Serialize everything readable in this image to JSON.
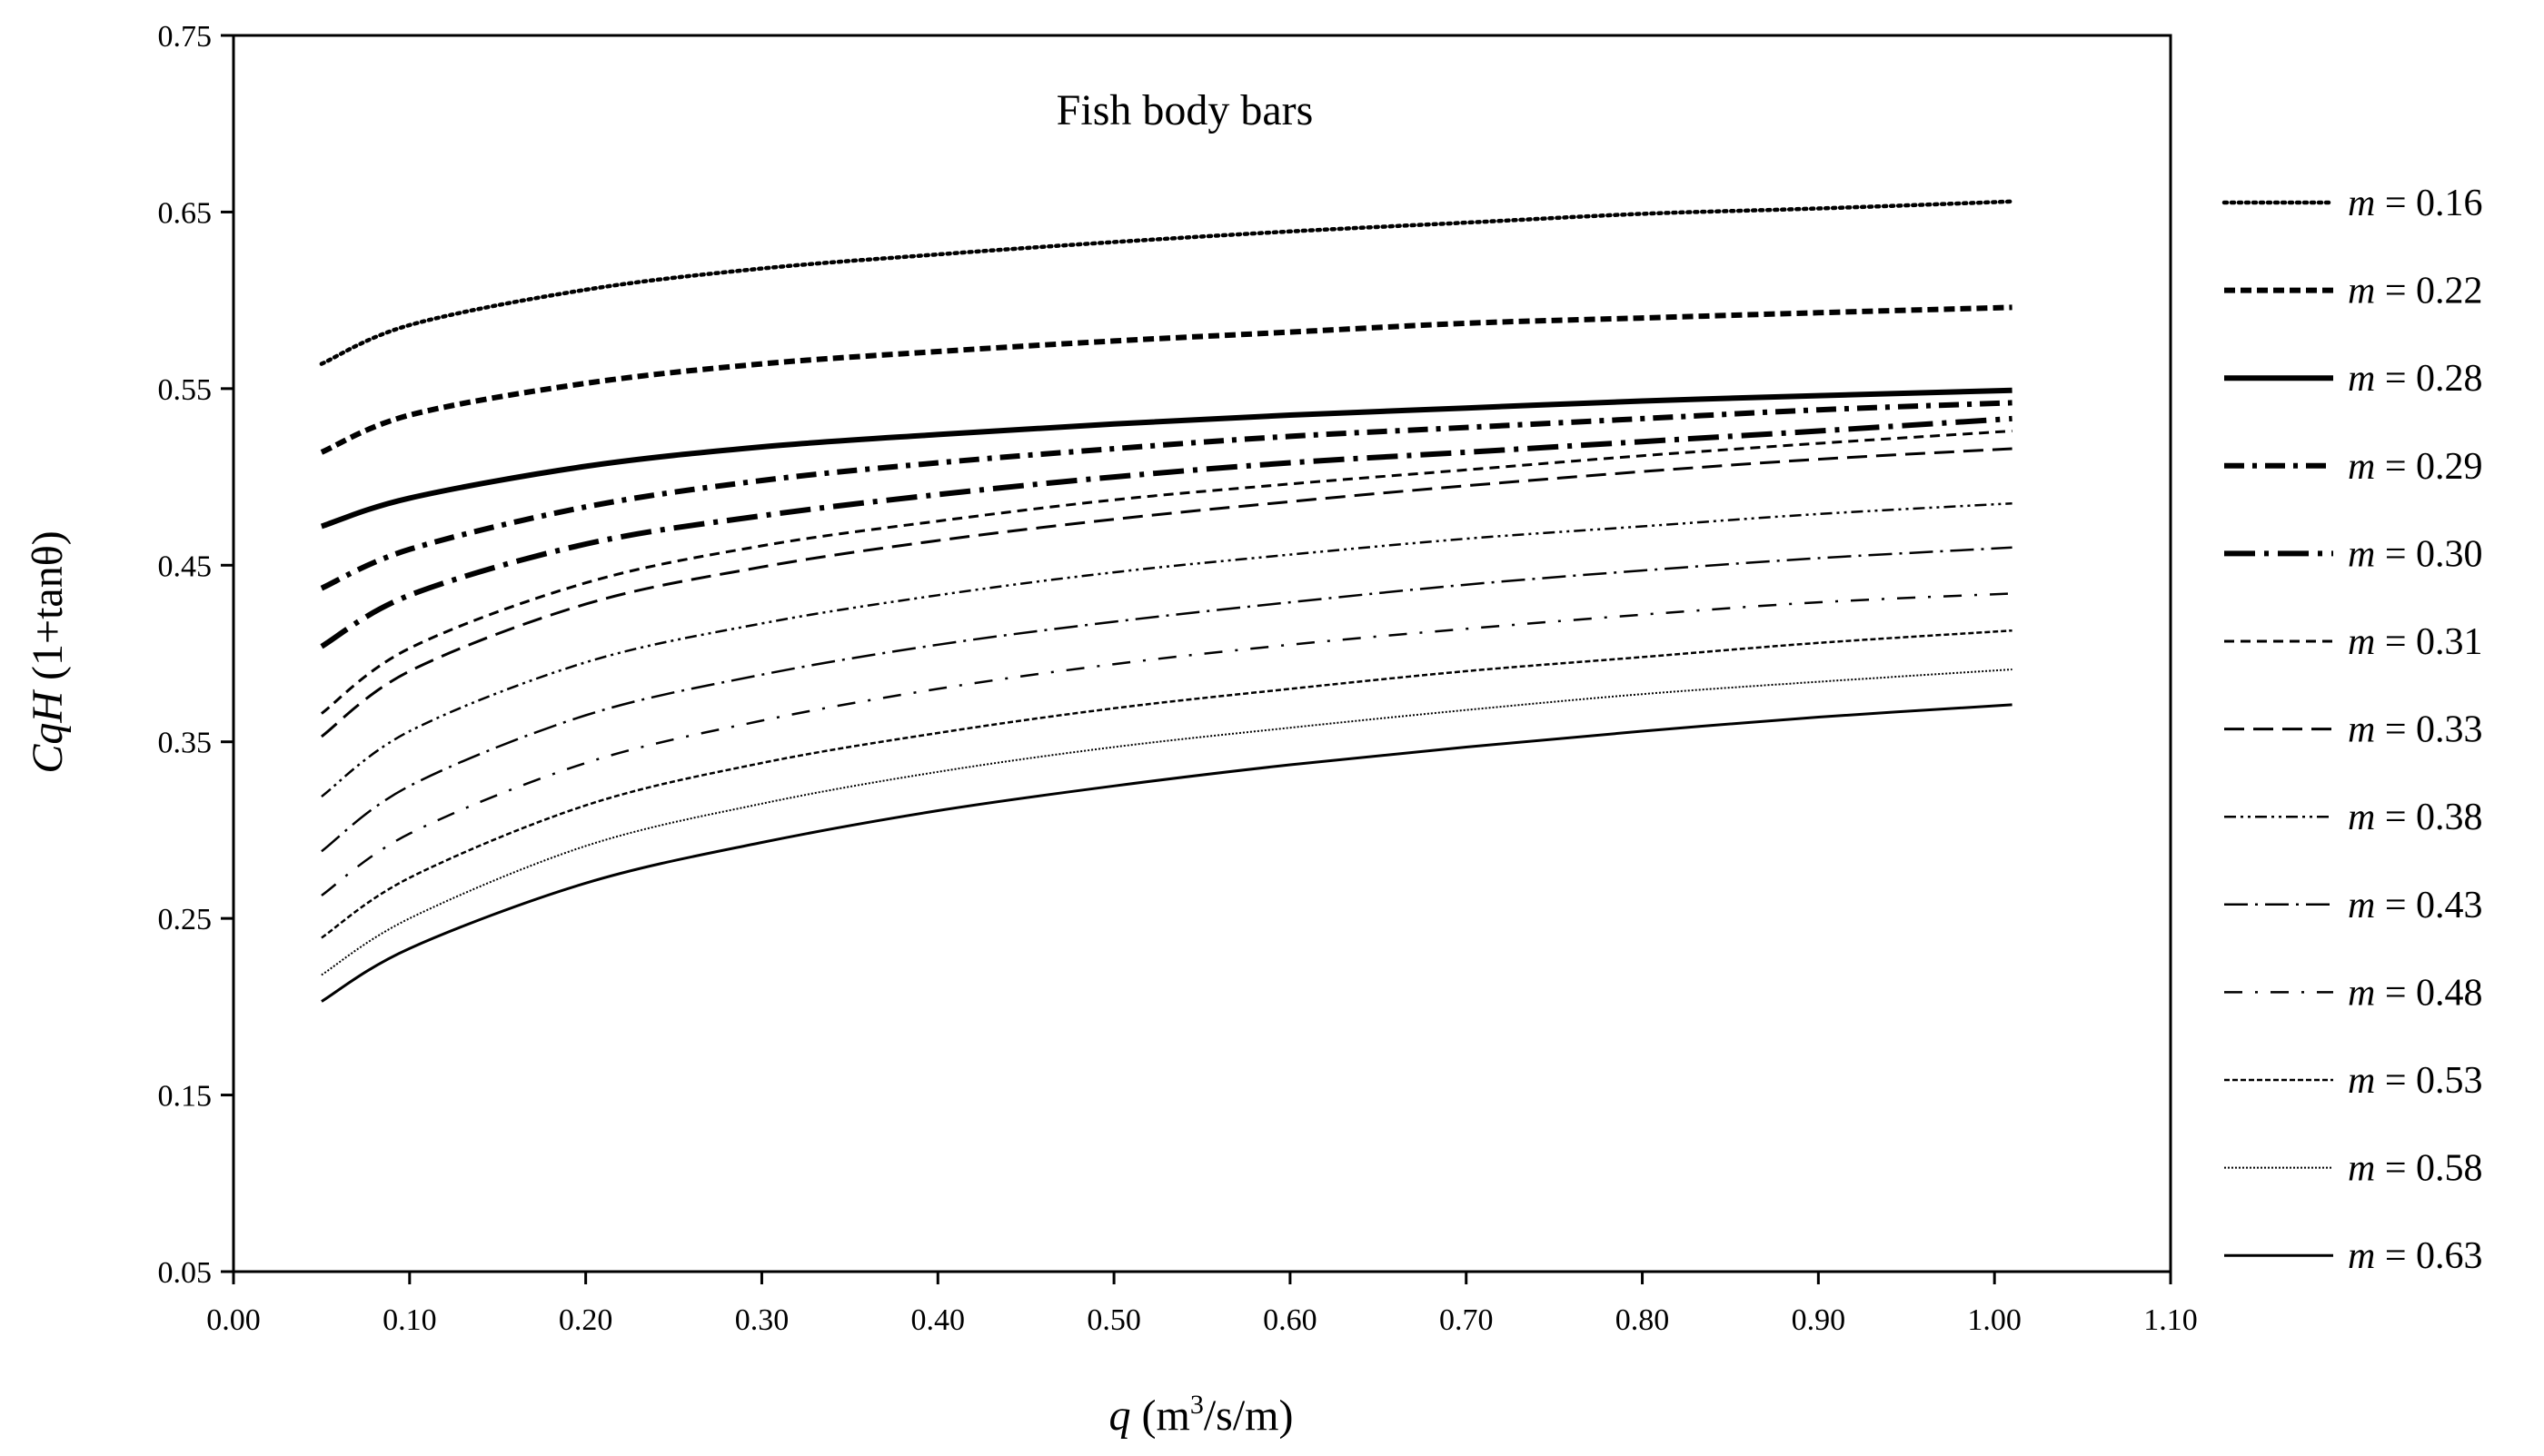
{
  "chart_data": {
    "type": "line",
    "title": "Fish body bars",
    "xlabel": {
      "var": "q",
      "rest": " (m",
      "sup": "3",
      "rest2": "/s/m)"
    },
    "ylabel": {
      "var": "CqH",
      "rest": " (1+tanθ)"
    },
    "xlim": [
      0.0,
      1.1
    ],
    "ylim": [
      0.05,
      0.75
    ],
    "xticks": [
      "0.00",
      "0.10",
      "0.20",
      "0.30",
      "0.40",
      "0.50",
      "0.60",
      "0.70",
      "0.80",
      "0.90",
      "1.00",
      "1.10"
    ],
    "yticks": [
      "0.05",
      "0.15",
      "0.25",
      "0.35",
      "0.45",
      "0.55",
      "0.65",
      "0.75"
    ],
    "x": [
      0.05,
      0.1,
      0.2,
      0.3,
      0.4,
      0.5,
      0.6,
      0.7,
      0.8,
      0.9,
      1.01
    ],
    "legend_position": "right",
    "series": [
      {
        "name": "m = 0.16",
        "m": "m",
        "label": " = 0.16",
        "values": [
          0.564,
          0.586,
          0.606,
          0.618,
          0.626,
          0.633,
          0.639,
          0.644,
          0.649,
          0.652,
          0.656
        ]
      },
      {
        "name": "m = 0.22",
        "m": "m",
        "label": " = 0.22",
        "values": [
          0.514,
          0.535,
          0.553,
          0.564,
          0.571,
          0.577,
          0.582,
          0.587,
          0.59,
          0.593,
          0.596
        ]
      },
      {
        "name": "m = 0.28",
        "m": "m",
        "label": " = 0.28",
        "values": [
          0.472,
          0.488,
          0.506,
          0.517,
          0.524,
          0.53,
          0.535,
          0.539,
          0.543,
          0.546,
          0.549
        ]
      },
      {
        "name": "m = 0.29",
        "m": "m",
        "label": " = 0.29",
        "values": [
          0.437,
          0.459,
          0.483,
          0.498,
          0.508,
          0.516,
          0.523,
          0.528,
          0.533,
          0.538,
          0.542
        ]
      },
      {
        "name": "m = 0.30",
        "m": "m",
        "label": " = 0.30",
        "values": [
          0.404,
          0.433,
          0.462,
          0.478,
          0.49,
          0.5,
          0.508,
          0.514,
          0.52,
          0.526,
          0.533
        ]
      },
      {
        "name": "m = 0.31",
        "m": "m",
        "label": " = 0.31",
        "values": [
          0.366,
          0.403,
          0.44,
          0.461,
          0.475,
          0.487,
          0.496,
          0.504,
          0.512,
          0.519,
          0.526
        ]
      },
      {
        "name": "m = 0.33",
        "m": "m",
        "label": " = 0.33",
        "values": [
          0.353,
          0.39,
          0.428,
          0.449,
          0.464,
          0.476,
          0.486,
          0.495,
          0.503,
          0.51,
          0.516
        ]
      },
      {
        "name": "m = 0.38",
        "m": "m",
        "label": " = 0.38",
        "values": [
          0.319,
          0.356,
          0.395,
          0.417,
          0.433,
          0.446,
          0.456,
          0.465,
          0.472,
          0.479,
          0.485
        ]
      },
      {
        "name": "m = 0.43",
        "m": "m",
        "label": " = 0.43",
        "values": [
          0.288,
          0.325,
          0.365,
          0.388,
          0.405,
          0.418,
          0.429,
          0.439,
          0.447,
          0.454,
          0.46
        ]
      },
      {
        "name": "m = 0.48",
        "m": "m",
        "label": " = 0.48",
        "values": [
          0.263,
          0.298,
          0.338,
          0.362,
          0.38,
          0.394,
          0.405,
          0.414,
          0.422,
          0.429,
          0.434
        ]
      },
      {
        "name": "m = 0.53",
        "m": "m",
        "label": " = 0.53",
        "values": [
          0.239,
          0.273,
          0.314,
          0.338,
          0.355,
          0.369,
          0.38,
          0.39,
          0.398,
          0.406,
          0.413
        ]
      },
      {
        "name": "m = 0.58",
        "m": "m",
        "label": " = 0.58",
        "values": [
          0.218,
          0.25,
          0.291,
          0.315,
          0.333,
          0.347,
          0.358,
          0.368,
          0.377,
          0.384,
          0.391
        ]
      },
      {
        "name": "m = 0.63",
        "m": "m",
        "label": " = 0.63",
        "values": [
          0.203,
          0.233,
          0.27,
          0.293,
          0.311,
          0.325,
          0.337,
          0.347,
          0.356,
          0.364,
          0.371
        ]
      }
    ]
  },
  "styles": [
    {
      "width": 4.5,
      "dash": "3 5",
      "cap": "round"
    },
    {
      "width": 6,
      "dash": "12 6"
    },
    {
      "width": 6,
      "dash": ""
    },
    {
      "width": 6,
      "dash": "22 9 5 9"
    },
    {
      "width": 6,
      "dash": "34 10 5 10"
    },
    {
      "width": 3,
      "dash": "11 7"
    },
    {
      "width": 3,
      "dash": "22 10"
    },
    {
      "width": 2.5,
      "dash": "13 5 3 5 3 5"
    },
    {
      "width": 2.5,
      "dash": "26 8 3 8"
    },
    {
      "width": 2.5,
      "dash": "20 14 3 14"
    },
    {
      "width": 2.5,
      "dash": "6 3"
    },
    {
      "width": 2,
      "dash": "2 2"
    },
    {
      "width": 3,
      "dash": ""
    }
  ]
}
